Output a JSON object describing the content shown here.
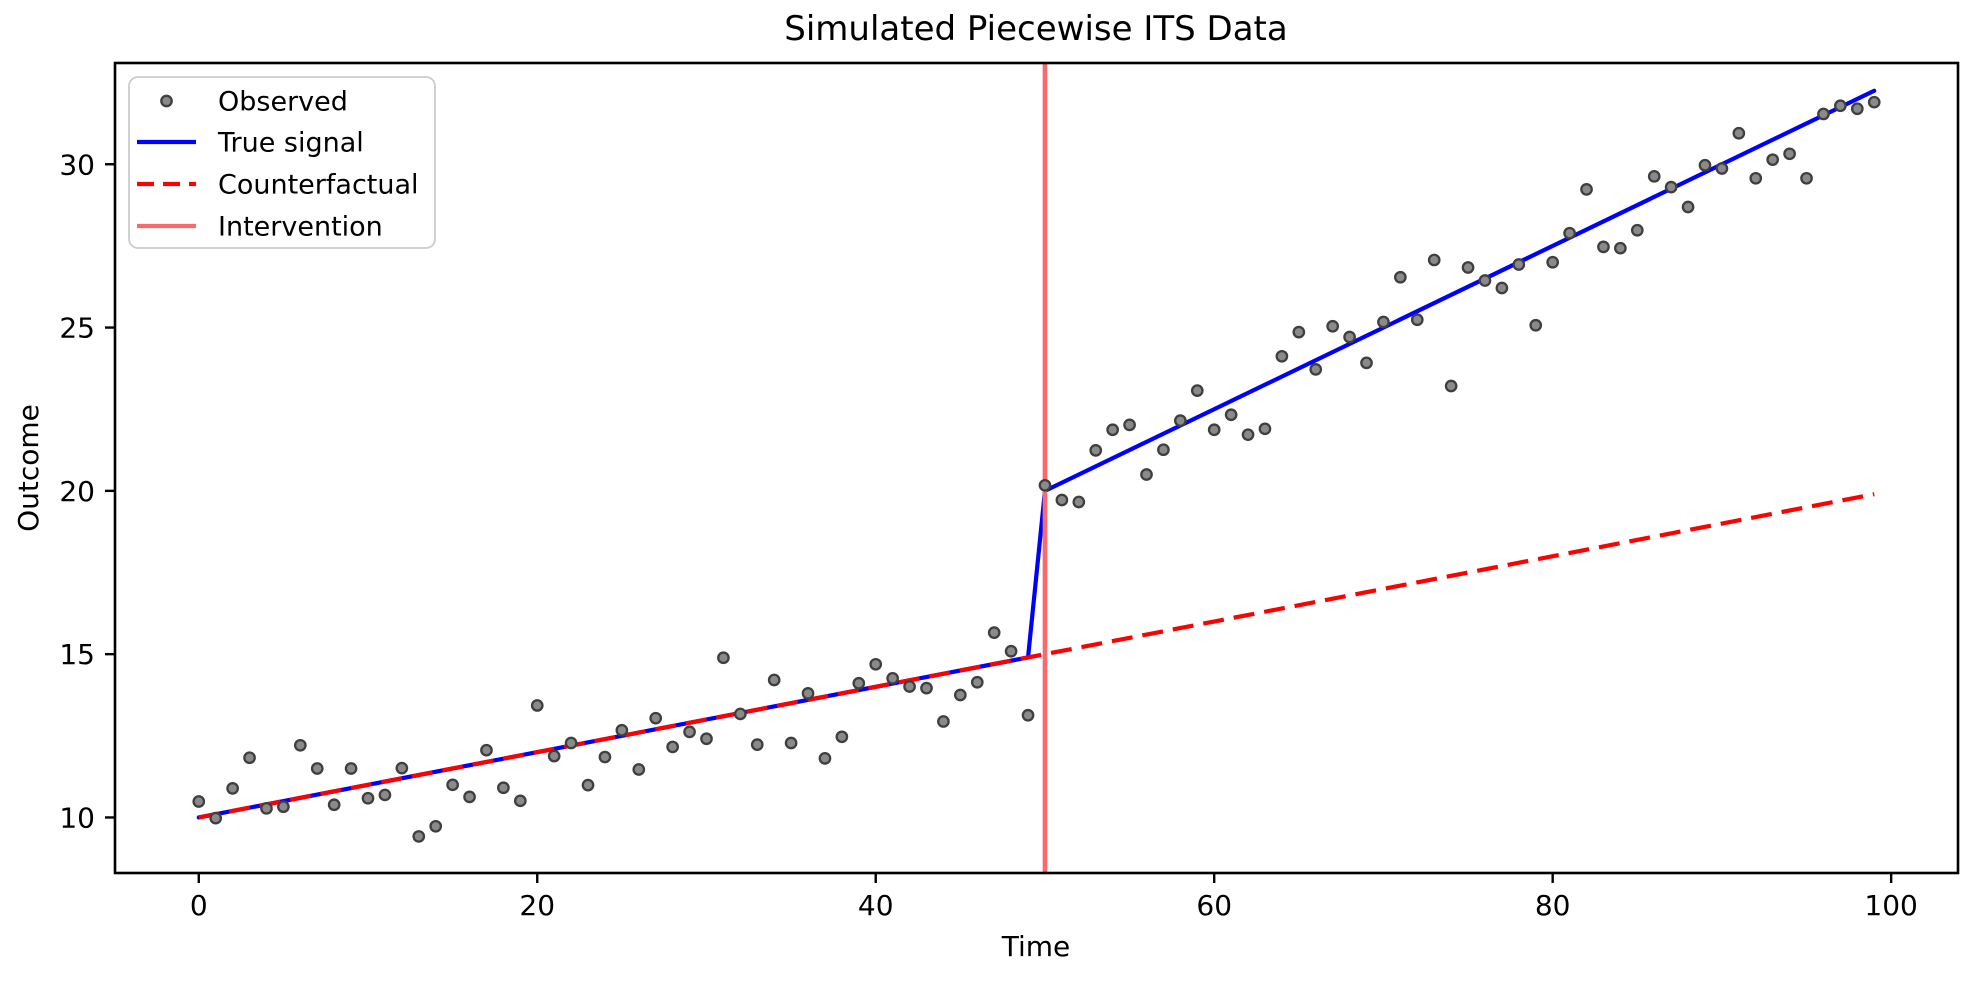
{
  "title": "Simulated Piecewise ITS Data",
  "axes": {
    "xlabel": "Time",
    "ylabel": "Outcome",
    "x_ticks": [
      0,
      20,
      40,
      60,
      80,
      100
    ],
    "y_ticks": [
      10,
      15,
      20,
      25,
      30
    ],
    "xlim": [
      -4.95,
      103.95
    ],
    "ylim": [
      8.3,
      33.1
    ],
    "grid": false
  },
  "legend": {
    "position": "upper-left",
    "items": [
      {
        "label": "Observed",
        "sample": "marker",
        "color": "#8a8a8a",
        "edge": "#3f3f3f"
      },
      {
        "label": "True signal",
        "sample": "line",
        "color": "#0000ff"
      },
      {
        "label": "Counterfactual",
        "sample": "dashed",
        "color": "#ff0000"
      },
      {
        "label": "Intervention",
        "sample": "line",
        "color": "#f96a6a"
      }
    ]
  },
  "colors": {
    "observed_fill": "#8a8a8a",
    "observed_edge": "#3f3f3f",
    "true_signal": "#0000ff",
    "counterfactual": "#ff0000",
    "intervention": "#f96a6a",
    "spine": "#000000",
    "legend_border": "#cccccc"
  },
  "chart_data": {
    "type": "scatter",
    "title": "Simulated Piecewise ITS Data",
    "xlabel": "Time",
    "ylabel": "Outcome",
    "xlim": [
      -4.95,
      103.95
    ],
    "ylim": [
      8.3,
      33.1
    ],
    "series": [
      {
        "name": "Observed",
        "type": "scatter",
        "x": [
          0,
          1,
          2,
          3,
          4,
          5,
          6,
          7,
          8,
          9,
          10,
          11,
          12,
          13,
          14,
          15,
          16,
          17,
          18,
          19,
          20,
          21,
          22,
          23,
          24,
          25,
          26,
          27,
          28,
          29,
          30,
          31,
          32,
          33,
          34,
          35,
          36,
          37,
          38,
          39,
          40,
          41,
          42,
          43,
          44,
          45,
          46,
          47,
          48,
          49,
          50,
          51,
          52,
          53,
          54,
          55,
          56,
          57,
          58,
          59,
          60,
          61,
          62,
          63,
          64,
          65,
          66,
          67,
          68,
          69,
          70,
          71,
          72,
          73,
          74,
          75,
          76,
          77,
          78,
          79,
          80,
          81,
          82,
          83,
          84,
          85,
          86,
          87,
          88,
          89,
          90,
          91,
          92,
          93,
          94,
          95,
          96,
          97,
          98,
          99
        ],
        "y": [
          10.49,
          9.98,
          10.89,
          11.83,
          10.28,
          10.33,
          12.21,
          11.5,
          10.39,
          11.5,
          10.59,
          10.69,
          11.51,
          9.42,
          9.73,
          11.0,
          10.63,
          12.06,
          10.91,
          10.51,
          13.43,
          11.88,
          12.28,
          10.99,
          11.85,
          12.67,
          11.47,
          13.04,
          12.16,
          12.62,
          12.41,
          14.89,
          13.17,
          12.23,
          14.21,
          12.28,
          13.8,
          11.81,
          12.47,
          14.11,
          14.69,
          14.26,
          14.01,
          13.96,
          12.94,
          13.75,
          14.14,
          15.66,
          15.09,
          13.13,
          20.17,
          19.72,
          19.66,
          21.24,
          21.87,
          22.02,
          20.5,
          21.26,
          22.15,
          23.07,
          21.87,
          22.33,
          21.72,
          21.9,
          24.12,
          24.86,
          23.72,
          25.04,
          24.71,
          23.92,
          25.17,
          26.54,
          25.24,
          27.07,
          23.21,
          26.84,
          26.44,
          26.21,
          26.93,
          25.07,
          27.0,
          27.89,
          29.23,
          27.47,
          27.43,
          27.98,
          29.63,
          29.3,
          28.69,
          29.97,
          29.87,
          30.95,
          29.57,
          30.14,
          30.32,
          29.57,
          31.54,
          31.79,
          31.7,
          31.9
        ]
      },
      {
        "name": "True signal",
        "type": "line",
        "x": [
          0,
          49,
          50,
          99
        ],
        "y": [
          10.0,
          14.9,
          20.0,
          32.25
        ],
        "model": "y = 10 + 0.1*t + (t>=50)*(5 + 0.15*(t-50))"
      },
      {
        "name": "Counterfactual",
        "type": "line-dashed",
        "x": [
          0,
          99
        ],
        "y": [
          10.0,
          19.9
        ],
        "model": "y = 10 + 0.1*t"
      },
      {
        "name": "Intervention",
        "type": "vline",
        "x": 50
      }
    ]
  }
}
